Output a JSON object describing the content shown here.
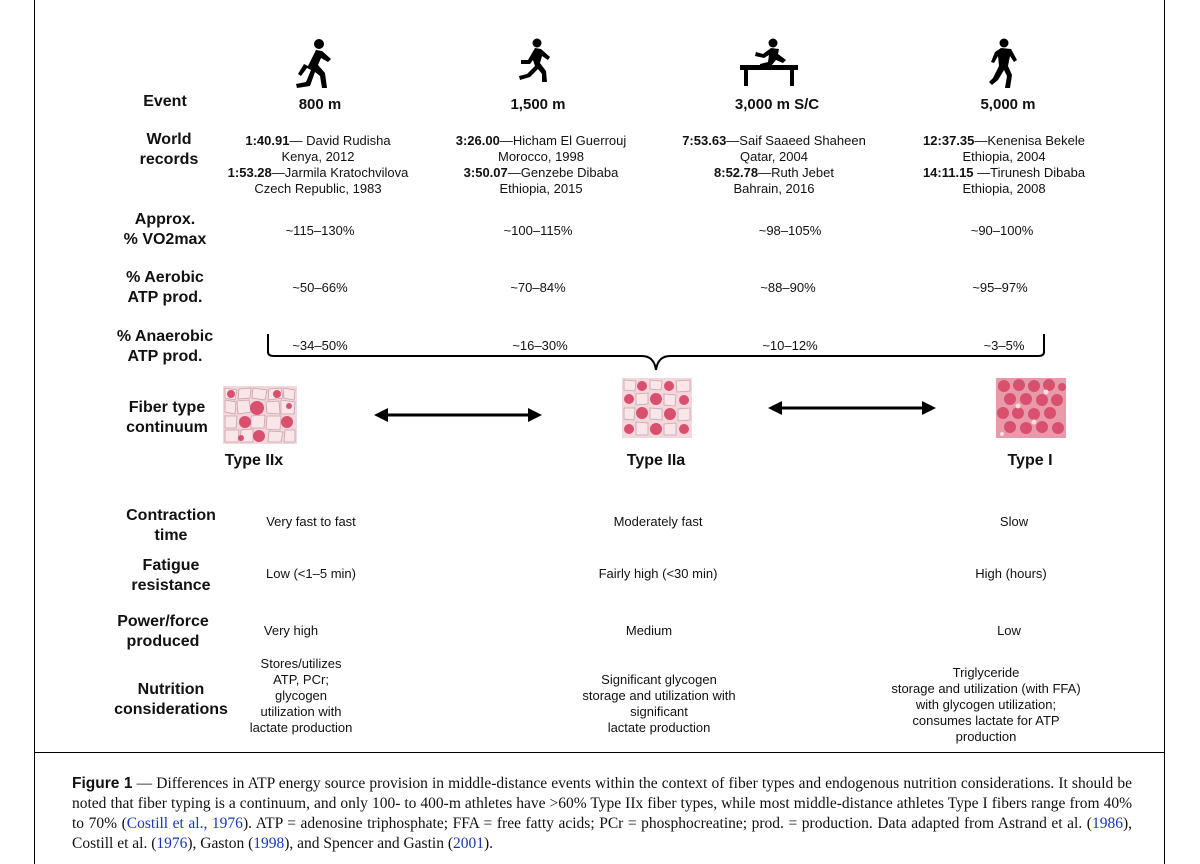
{
  "row_labels": {
    "event": "Event",
    "world_records": [
      "World",
      "records"
    ],
    "vo2": [
      "Approx.",
      "% VO2max"
    ],
    "aerobic": [
      "% Aerobic",
      "ATP prod."
    ],
    "anaerobic": [
      "% Anaerobic",
      "ATP prod."
    ],
    "fiber": [
      "Fiber type",
      "continuum"
    ],
    "contraction": [
      "Contraction",
      "time"
    ],
    "fatigue": [
      "Fatigue",
      "resistance"
    ],
    "power": [
      "Power/force",
      "produced"
    ],
    "nutrition": [
      "Nutrition",
      "considerations"
    ]
  },
  "events": [
    {
      "name": "800 m",
      "records": [
        {
          "time": "1:40.91",
          "rest": "— David Rudisha"
        },
        {
          "plain": "Kenya, 2012"
        },
        {
          "time": "1:53.28",
          "rest": "—Jarmila Kratochvilova"
        },
        {
          "plain": "Czech Republic, 1983"
        }
      ],
      "vo2": "~115–130%",
      "aerobic": "~50–66%",
      "anaerobic": "~34–50%"
    },
    {
      "name": "1,500 m",
      "records": [
        {
          "time": "3:26.00",
          "rest": "—Hicham El Guerrouj"
        },
        {
          "plain": "Morocco, 1998"
        },
        {
          "time": "3:50.07",
          "rest": "—Genzebe Dibaba"
        },
        {
          "plain": "Ethiopia, 2015"
        }
      ],
      "vo2": "~100–115%",
      "aerobic": "~70–84%",
      "anaerobic": "~16–30%"
    },
    {
      "name": "3,000 m S/C",
      "records": [
        {
          "time": "7:53.63",
          "rest": "—Saif Saaeed Shaheen"
        },
        {
          "plain": "Qatar, 2004"
        },
        {
          "time": "8:52.78",
          "rest": "—Ruth Jebet"
        },
        {
          "plain": "Bahrain, 2016"
        }
      ],
      "vo2": "~98–105%",
      "aerobic": "~88–90%",
      "anaerobic": "~10–12%"
    },
    {
      "name": "5,000 m",
      "records": [
        {
          "time": "12:37.35",
          "rest": "—Kenenisa Bekele"
        },
        {
          "plain": "Ethiopia, 2004"
        },
        {
          "time": "14:11.15",
          "rest": " —Tirunesh Dibaba"
        },
        {
          "plain": "Ethiopia, 2008"
        }
      ],
      "vo2": "~90–100%",
      "aerobic": "~95–97%",
      "anaerobic": "~3–5%"
    }
  ],
  "fibers": [
    {
      "name": "Type IIx",
      "contraction": "Very  fast to fast",
      "fatigue": "Low (<1–5 min)",
      "power": "Very high",
      "nutrition": "Stores/utilizes\nATP, PCr;\nglycogen\nutilization with\nlactate production"
    },
    {
      "name": "Type IIa",
      "contraction": "Moderately fast",
      "fatigue": "Fairly high (<30 min)",
      "power": "Medium",
      "nutrition": "Significant glycogen\nstorage and utilization with\nsignificant\nlactate production"
    },
    {
      "name": "Type I",
      "contraction": "Slow",
      "fatigue": "High (hours)",
      "power": "Low",
      "nutrition": "Triglyceride\nstorage and utilization (with FFA)\nwith glycogen utilization;\nconsumes lactate for ATP\nproduction"
    }
  ],
  "caption": {
    "label": "Figure 1",
    "dash": " — ",
    "t1": "Differences in ATP energy source provision in middle-distance events within the context of fiber types and endogenous nutrition considerations. It should be noted that fiber typing is a continuum, and only 100- to 400-m athletes have >60% Type IIx fiber types, while most middle-distance athletes Type I fibers range from 40% to 70% (",
    "ref1": "Costill et al., 1976",
    "t2": "). ATP = adenosine triphosphate; FFA = free fatty acids; PCr = phosphocreatine; prod. = production. Data adapted from Astrand et al. (",
    "ref2": "1986",
    "t3": "), Costill et al. (",
    "ref3": "1976",
    "t4": "), Gaston (",
    "ref4": "1998",
    "t5": "), and Spencer and Gastin (",
    "ref5": "2001",
    "t6": ")."
  },
  "colors": {
    "fiber_fill": "#d9506e",
    "fiber_bg": "#f3d7dc",
    "link": "#1a35b8"
  }
}
